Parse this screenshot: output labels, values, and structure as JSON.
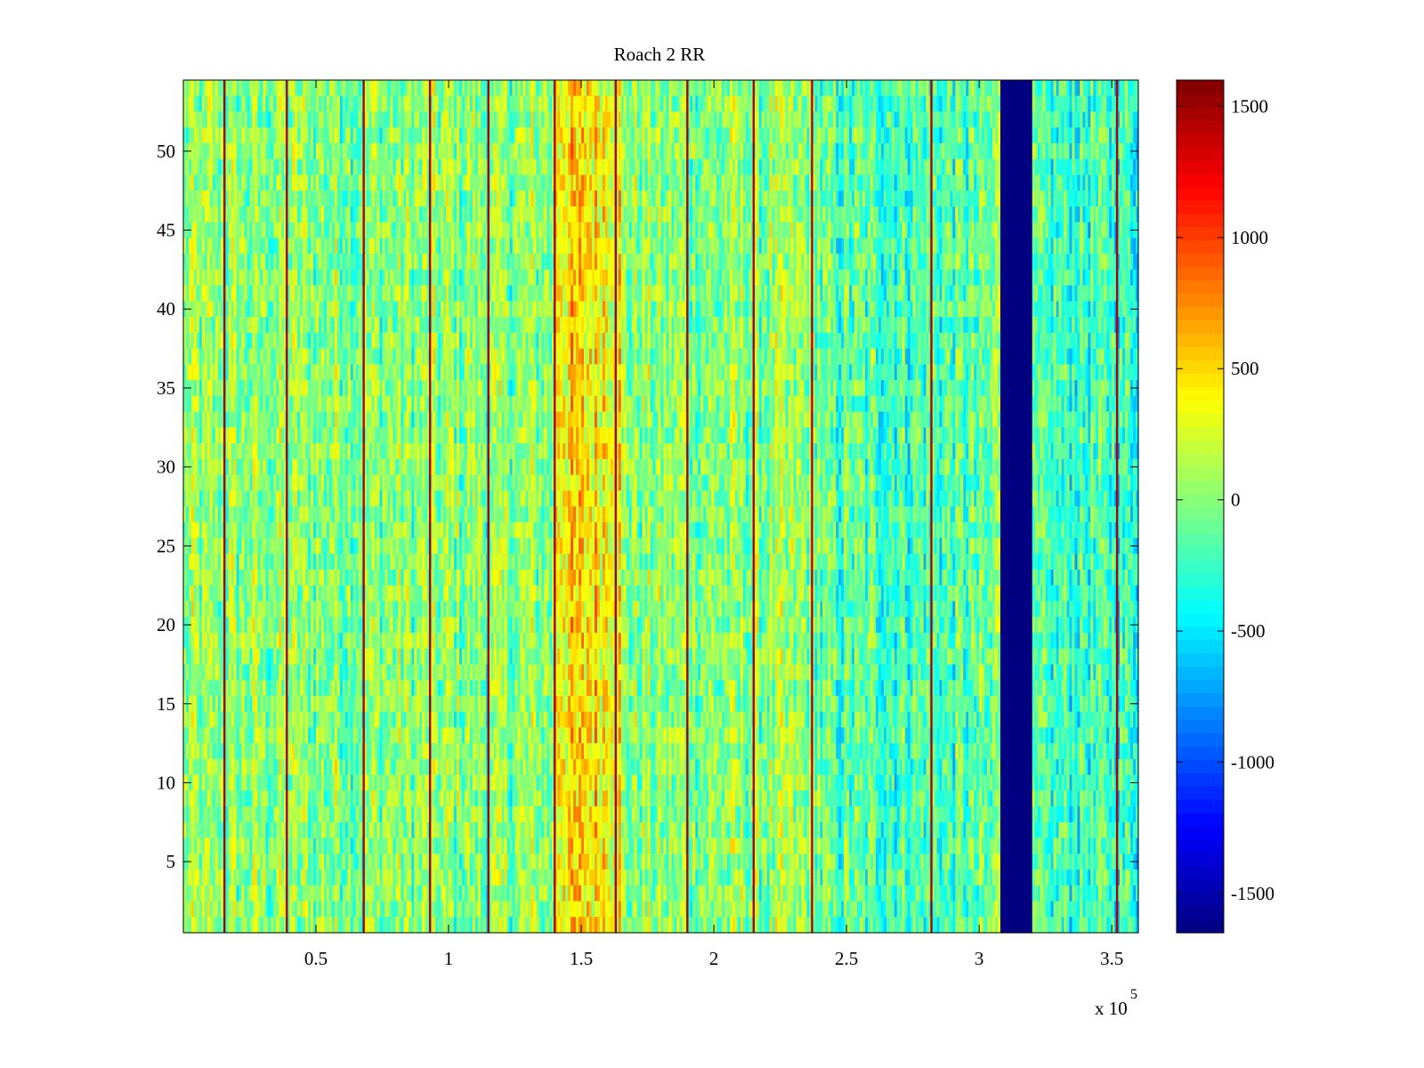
{
  "chart_data": {
    "type": "heatmap",
    "title": "Roach 2 RR",
    "xlabel": "",
    "ylabel": "",
    "x_exponent_label": "x 10",
    "x_exponent_power": "5",
    "xlim": [
      0,
      3.6
    ],
    "ylim": [
      0.5,
      54.5
    ],
    "x_ticks": [
      {
        "value": 0.5,
        "label": "0.5"
      },
      {
        "value": 1.0,
        "label": "1"
      },
      {
        "value": 1.5,
        "label": "1.5"
      },
      {
        "value": 2.0,
        "label": "2"
      },
      {
        "value": 2.5,
        "label": "2.5"
      },
      {
        "value": 3.0,
        "label": "3"
      },
      {
        "value": 3.5,
        "label": "3.5"
      }
    ],
    "y_ticks": [
      {
        "value": 5,
        "label": "5"
      },
      {
        "value": 10,
        "label": "10"
      },
      {
        "value": 15,
        "label": "15"
      },
      {
        "value": 20,
        "label": "20"
      },
      {
        "value": 25,
        "label": "25"
      },
      {
        "value": 30,
        "label": "30"
      },
      {
        "value": 35,
        "label": "35"
      },
      {
        "value": 40,
        "label": "40"
      },
      {
        "value": 45,
        "label": "45"
      },
      {
        "value": 50,
        "label": "50"
      }
    ],
    "colorbar": {
      "colormap": "jet",
      "clim": [
        -1650,
        1600
      ],
      "ticks": [
        {
          "value": 1500,
          "label": "1500"
        },
        {
          "value": 1000,
          "label": "1000"
        },
        {
          "value": 500,
          "label": "500"
        },
        {
          "value": 0,
          "label": "0"
        },
        {
          "value": -500,
          "label": "-500"
        },
        {
          "value": -1000,
          "label": "-1000"
        },
        {
          "value": -1500,
          "label": "-1500"
        }
      ]
    },
    "rows": 54,
    "columns": 360,
    "background_level": 0,
    "regional_levels": [
      {
        "x_range": [
          1.4,
          1.65
        ],
        "level": 450
      },
      {
        "x_range": [
          2.4,
          3.05
        ],
        "level": -180
      },
      {
        "x_range": [
          3.2,
          3.6
        ],
        "level": -250
      }
    ],
    "masked_band": {
      "x_range": [
        3.08,
        3.2
      ],
      "value": -1650
    },
    "bright_lines": [
      0.155,
      0.39,
      0.68,
      0.93,
      1.15,
      1.4,
      1.63,
      1.9,
      2.15,
      2.37,
      2.82,
      3.52
    ],
    "bright_line_value": 1450
  }
}
